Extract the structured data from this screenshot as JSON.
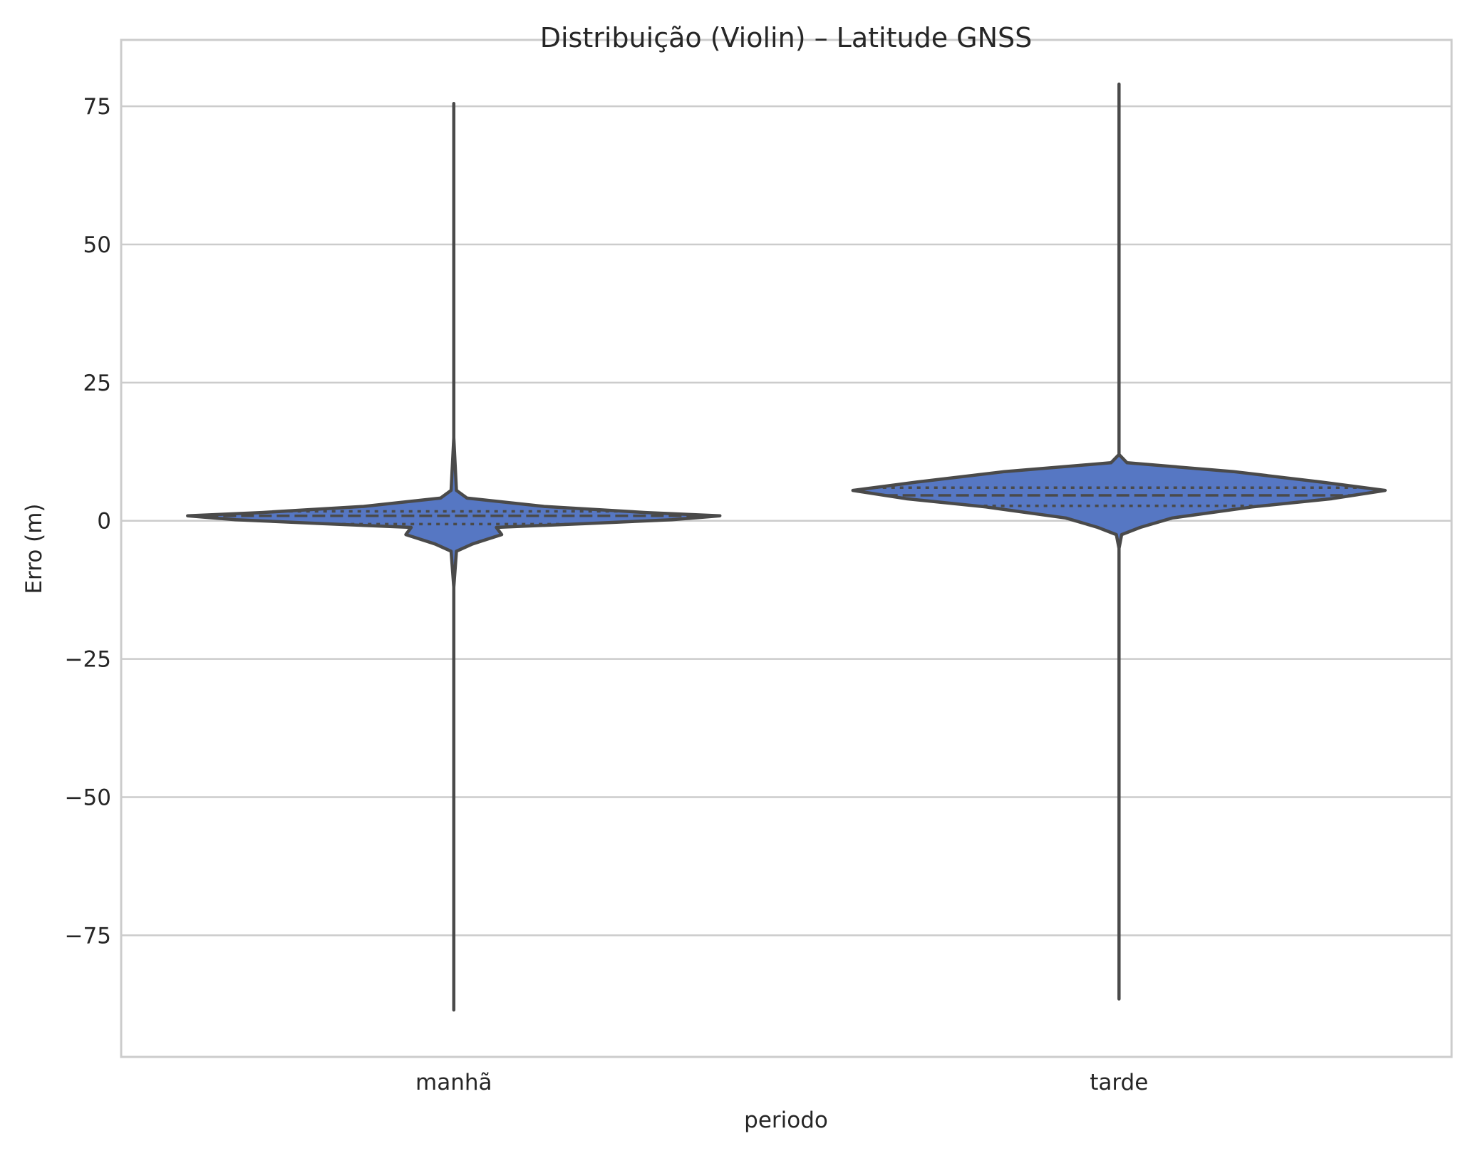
{
  "chart_data": {
    "type": "violin",
    "title": "Distribuição (Violin) – Latitude GNSS",
    "xlabel": "periodo",
    "ylabel": "Erro (m)",
    "ylim": [
      -97,
      87
    ],
    "yticks": [
      75,
      50,
      25,
      0,
      -25,
      -50,
      -75
    ],
    "ytick_labels": [
      "75",
      "50",
      "25",
      "0",
      "−25",
      "−50",
      "−75"
    ],
    "grid": "horizontal",
    "colors": {
      "fill": "#5677c3",
      "edge": "#4a4a4a",
      "grid": "#cccccc",
      "frame": "#cccccc"
    },
    "categories": [
      "manhã",
      "tarde"
    ],
    "series": [
      {
        "category": "manhã",
        "min": -88.5,
        "max": 75.5,
        "q1": -0.6,
        "median": 0.9,
        "q3": 1.7,
        "profile": [
          [
            -88.5,
            0
          ],
          [
            -12,
            0
          ],
          [
            -5.5,
            0.01
          ],
          [
            -4.2,
            0.07
          ],
          [
            -2.5,
            0.18
          ],
          [
            -1.2,
            0.16
          ],
          [
            -0.5,
            0.5
          ],
          [
            0.2,
            0.82
          ],
          [
            0.9,
            1.0
          ],
          [
            1.5,
            0.72
          ],
          [
            2.6,
            0.34
          ],
          [
            4.1,
            0.05
          ],
          [
            5.5,
            0.01
          ],
          [
            15,
            0
          ],
          [
            75.5,
            0
          ]
        ]
      },
      {
        "category": "tarde",
        "min": -86.5,
        "max": 79,
        "q1": 2.7,
        "median": 4.6,
        "q3": 6.0,
        "profile": [
          [
            -86.5,
            0
          ],
          [
            -5,
            0
          ],
          [
            -2.5,
            0.01
          ],
          [
            -1.2,
            0.08
          ],
          [
            0.5,
            0.2
          ],
          [
            2.5,
            0.5
          ],
          [
            4.0,
            0.8
          ],
          [
            5.5,
            1.0
          ],
          [
            7.0,
            0.76
          ],
          [
            8.9,
            0.43
          ],
          [
            10.5,
            0.03
          ],
          [
            12,
            0
          ],
          [
            79,
            0
          ]
        ]
      }
    ]
  }
}
